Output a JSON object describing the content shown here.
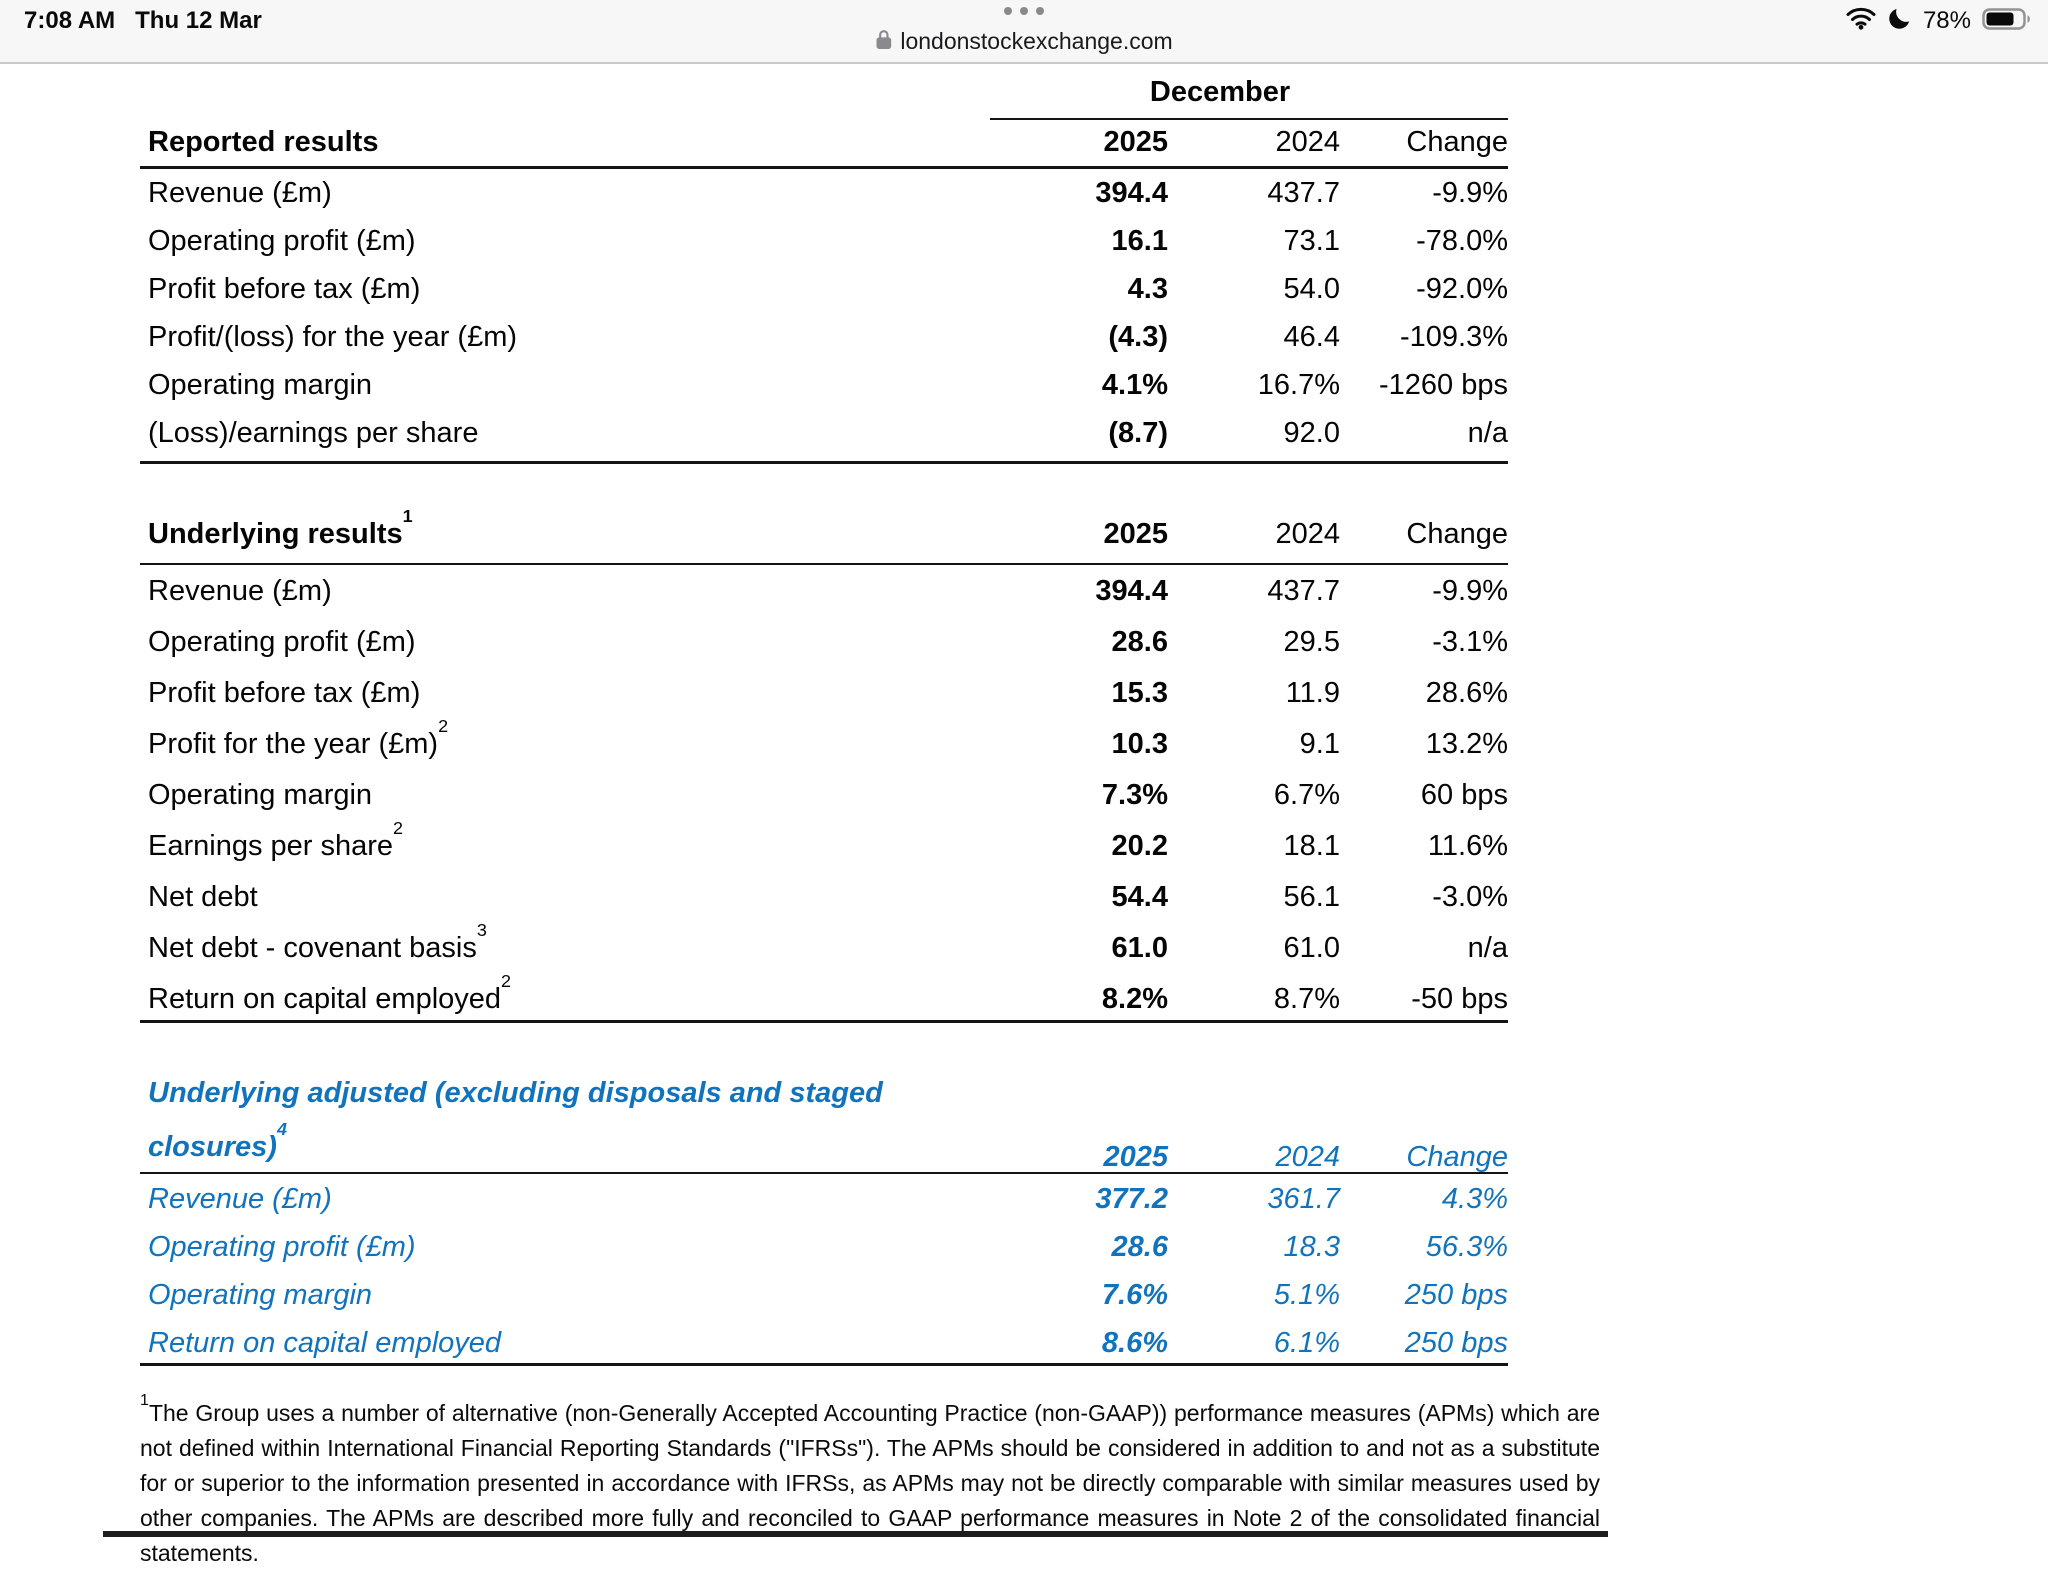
{
  "status_bar": {
    "time": "7:08 AM",
    "date": "Thu 12 Mar",
    "battery_percent": "78%",
    "icons": [
      "wifi-icon",
      "moon-icon",
      "battery-icon"
    ]
  },
  "browser": {
    "url": "londonstockexchange.com",
    "page_menu_icon": "ellipsis-icon",
    "secure_icon": "lock-icon"
  },
  "colors": {
    "accent_blue": "#1273bd",
    "chrome_background": "#f7f7f8",
    "rule_black": "#141414"
  },
  "group_header": {
    "label": "December"
  },
  "tables": [
    {
      "title": "Reported results",
      "title_sup": "",
      "columns": [
        "2025",
        "2024",
        "Change"
      ],
      "style": "black",
      "rows": [
        {
          "label": "Revenue (£m)",
          "sup": "",
          "v2025": "394.4",
          "v2024": "437.7",
          "change": "-9.9%"
        },
        {
          "label": "Operating profit (£m)",
          "sup": "",
          "v2025": "16.1",
          "v2024": "73.1",
          "change": "-78.0%"
        },
        {
          "label": "Profit before tax (£m)",
          "sup": "",
          "v2025": "4.3",
          "v2024": "54.0",
          "change": "-92.0%"
        },
        {
          "label": "Profit/(loss) for the year (£m)",
          "sup": "",
          "v2025": "(4.3)",
          "v2024": "46.4",
          "change": "-109.3%"
        },
        {
          "label": "Operating margin",
          "sup": "",
          "v2025": "4.1%",
          "v2024": "16.7%",
          "change": "-1260 bps"
        },
        {
          "label": "(Loss)/earnings per share",
          "sup": "",
          "v2025": "(8.7)",
          "v2024": "92.0",
          "change": "n/a"
        }
      ]
    },
    {
      "title": "Underlying results",
      "title_sup": "1",
      "columns": [
        "2025",
        "2024",
        "Change"
      ],
      "style": "black",
      "rows": [
        {
          "label": "Revenue (£m)",
          "sup": "",
          "v2025": "394.4",
          "v2024": "437.7",
          "change": "-9.9%"
        },
        {
          "label": "Operating profit (£m)",
          "sup": "",
          "v2025": "28.6",
          "v2024": "29.5",
          "change": "-3.1%"
        },
        {
          "label": "Profit before tax (£m)",
          "sup": "",
          "v2025": "15.3",
          "v2024": "11.9",
          "change": "28.6%"
        },
        {
          "label": "Profit for the year (£m)",
          "sup": "2",
          "v2025": "10.3",
          "v2024": "9.1",
          "change": "13.2%"
        },
        {
          "label": "Operating margin",
          "sup": "",
          "v2025": "7.3%",
          "v2024": "6.7%",
          "change": "60 bps"
        },
        {
          "label": "Earnings per share",
          "sup": "2",
          "v2025": "20.2",
          "v2024": "18.1",
          "change": "11.6%"
        },
        {
          "label": "Net debt",
          "sup": "",
          "v2025": "54.4",
          "v2024": "56.1",
          "change": "-3.0%"
        },
        {
          "label": "Net debt - covenant basis",
          "sup": "3",
          "v2025": "61.0",
          "v2024": "61.0",
          "change": "n/a"
        },
        {
          "label": "Return on capital employed",
          "sup": "2",
          "v2025": "8.2%",
          "v2024": "8.7%",
          "change": "-50 bps"
        }
      ]
    },
    {
      "title": "Underlying adjusted (excluding disposals and staged closures)",
      "title_sup": "4",
      "columns": [
        "2025",
        "2024",
        "Change"
      ],
      "style": "blue",
      "rows": [
        {
          "label": "Revenue (£m)",
          "sup": "",
          "v2025": "377.2",
          "v2024": "361.7",
          "change": "4.3%"
        },
        {
          "label": "Operating profit (£m)",
          "sup": "",
          "v2025": "28.6",
          "v2024": "18.3",
          "change": "56.3%"
        },
        {
          "label": "Operating margin",
          "sup": "",
          "v2025": "7.6%",
          "v2024": "5.1%",
          "change": "250 bps"
        },
        {
          "label": "Return on capital employed",
          "sup": "",
          "v2025": "8.6%",
          "v2024": "6.1%",
          "change": "250 bps"
        }
      ]
    }
  ],
  "footnote": {
    "sup": "1",
    "text": "The Group uses a number of alternative (non-Generally Accepted Accounting Practice (non-GAAP)) performance measures (APMs) which are not defined within International Financial Reporting Standards (\"IFRSs\"). The APMs should be considered in addition to and not as a substitute for or superior to the information presented in accordance with IFRSs, as APMs may not be directly comparable with similar measures used by other companies. The APMs are described more fully and reconciled to GAAP performance measures in Note 2 of the consolidated financial statements."
  }
}
